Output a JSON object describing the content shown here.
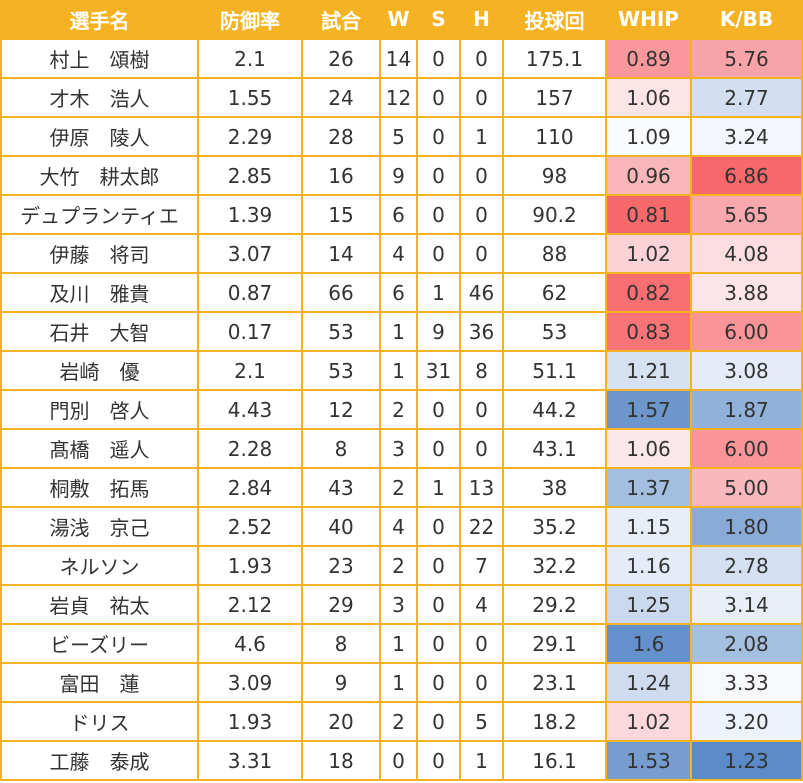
{
  "headers": [
    "選手名",
    "防御率",
    "試合",
    "W",
    "S",
    "H",
    "投球回",
    "WHIP",
    "K/BB"
  ],
  "rows": [
    {
      "name": "村上　頌樹",
      "era": "2.1",
      "g": "26",
      "w": "14",
      "s": "0",
      "h": "0",
      "ip": "175.1",
      "whip": "0.89",
      "kbb": "5.76",
      "whip_color": "#f8989d",
      "kbb_color": "#f8a3a8"
    },
    {
      "name": "才木　浩人",
      "era": "1.55",
      "g": "24",
      "w": "12",
      "s": "0",
      "h": "0",
      "ip": "157",
      "whip": "1.06",
      "kbb": "2.77",
      "whip_color": "#fce4e7",
      "kbb_color": "#d2dff0"
    },
    {
      "name": "伊原　陵人",
      "era": "2.29",
      "g": "28",
      "w": "5",
      "s": "0",
      "h": "1",
      "ip": "110",
      "whip": "1.09",
      "kbb": "3.24",
      "whip_color": "#fafbfe",
      "kbb_color": "#f3f6fc"
    },
    {
      "name": "大竹　耕太郎",
      "era": "2.85",
      "g": "16",
      "w": "9",
      "s": "0",
      "h": "0",
      "ip": "98",
      "whip": "0.96",
      "kbb": "6.86",
      "whip_color": "#f9b7bb",
      "kbb_color": "#f8696b"
    },
    {
      "name": "デュプランティエ",
      "era": "1.39",
      "g": "15",
      "w": "6",
      "s": "0",
      "h": "0",
      "ip": "90.2",
      "whip": "0.81",
      "kbb": "5.65",
      "whip_color": "#f8696b",
      "kbb_color": "#f9a9ad"
    },
    {
      "name": "伊藤　将司",
      "era": "3.07",
      "g": "14",
      "w": "4",
      "s": "0",
      "h": "0",
      "ip": "88",
      "whip": "1.02",
      "kbb": "4.08",
      "whip_color": "#fbd3d6",
      "kbb_color": "#fcdde0"
    },
    {
      "name": "及川　雅貴",
      "era": "0.87",
      "g": "66",
      "w": "6",
      "s": "1",
      "h": "46",
      "ip": "62",
      "whip": "0.82",
      "kbb": "3.88",
      "whip_color": "#f86f72",
      "kbb_color": "#fce5e8"
    },
    {
      "name": "石井　大智",
      "era": "0.17",
      "g": "53",
      "w": "1",
      "s": "9",
      "h": "36",
      "ip": "53",
      "whip": "0.83",
      "kbb": "6.00",
      "whip_color": "#f87477",
      "kbb_color": "#f99599"
    },
    {
      "name": "岩崎　優",
      "era": "2.1",
      "g": "53",
      "w": "1",
      "s": "31",
      "h": "8",
      "ip": "51.1",
      "whip": "1.21",
      "kbb": "3.08",
      "whip_color": "#d6e1f1",
      "kbb_color": "#e5ecf7"
    },
    {
      "name": "門別　啓人",
      "era": "4.43",
      "g": "12",
      "w": "2",
      "s": "0",
      "h": "0",
      "ip": "44.2",
      "whip": "1.57",
      "kbb": "1.87",
      "whip_color": "#6d96cd",
      "kbb_color": "#91b0da"
    },
    {
      "name": "髙橋　遥人",
      "era": "2.28",
      "g": "8",
      "w": "3",
      "s": "0",
      "h": "0",
      "ip": "43.1",
      "whip": "1.06",
      "kbb": "6.00",
      "whip_color": "#fce8eb",
      "kbb_color": "#f99599"
    },
    {
      "name": "桐敷　拓馬",
      "era": "2.84",
      "g": "43",
      "w": "2",
      "s": "1",
      "h": "13",
      "ip": "38",
      "whip": "1.37",
      "kbb": "5.00",
      "whip_color": "#a4bee0",
      "kbb_color": "#f9b8bc"
    },
    {
      "name": "湯浅　京己",
      "era": "2.52",
      "g": "40",
      "w": "4",
      "s": "0",
      "h": "22",
      "ip": "35.2",
      "whip": "1.15",
      "kbb": "1.80",
      "whip_color": "#e7eef8",
      "kbb_color": "#8aabd8"
    },
    {
      "name": "ネルソン",
      "era": "1.93",
      "g": "23",
      "w": "2",
      "s": "0",
      "h": "7",
      "ip": "32.2",
      "whip": "1.16",
      "kbb": "2.78",
      "whip_color": "#e5ecf7",
      "kbb_color": "#d4e0f1"
    },
    {
      "name": "岩貞　祐太",
      "era": "2.12",
      "g": "29",
      "w": "3",
      "s": "0",
      "h": "4",
      "ip": "29.2",
      "whip": "1.25",
      "kbb": "3.14",
      "whip_color": "#cbd9ee",
      "kbb_color": "#e9eff8"
    },
    {
      "name": "ビーズリー",
      "era": "4.6",
      "g": "8",
      "w": "1",
      "s": "0",
      "h": "0",
      "ip": "29.1",
      "whip": "1.6",
      "kbb": "2.08",
      "whip_color": "#6490cb",
      "kbb_color": "#a5bfe0"
    },
    {
      "name": "富田　蓮",
      "era": "3.09",
      "g": "9",
      "w": "1",
      "s": "0",
      "h": "0",
      "ip": "23.1",
      "whip": "1.24",
      "kbb": "3.33",
      "whip_color": "#cfdcef",
      "kbb_color": "#f6f8fc"
    },
    {
      "name": "ドリス",
      "era": "1.93",
      "g": "20",
      "w": "2",
      "s": "0",
      "h": "5",
      "ip": "18.2",
      "whip": "1.02",
      "kbb": "3.20",
      "whip_color": "#fbd8db",
      "kbb_color": "#eef2fa"
    },
    {
      "name": "工藤　泰成",
      "era": "3.31",
      "g": "18",
      "w": "0",
      "s": "0",
      "h": "1",
      "ip": "16.1",
      "whip": "1.53",
      "kbb": "1.23",
      "whip_color": "#779dd0",
      "kbb_color": "#5b8ac8"
    }
  ]
}
